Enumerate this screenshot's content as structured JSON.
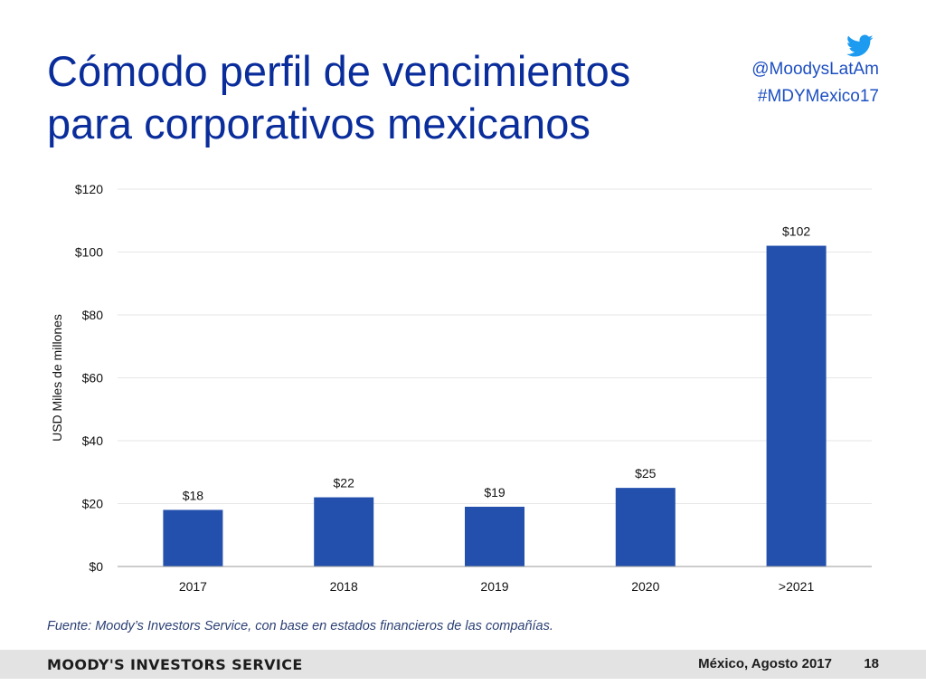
{
  "header": {
    "title_line1": "Cómodo perfil de vencimientos",
    "title_line2": "para corporativos mexicanos",
    "twitter_handle": "@MoodysLatAm",
    "hashtag": "#MDYMexico17",
    "icon": "twitter-bird-icon"
  },
  "chart_data": {
    "type": "bar",
    "title": "",
    "xlabel": "",
    "ylabel": "USD Miles de millones",
    "categories": [
      "2017",
      "2018",
      "2019",
      "2020",
      ">2021"
    ],
    "values": [
      18,
      22,
      19,
      25,
      102
    ],
    "value_labels": [
      "$18",
      "$22",
      "$19",
      "$25",
      "$102"
    ],
    "ylim": [
      0,
      120
    ],
    "yticks": [
      0,
      20,
      40,
      60,
      80,
      100,
      120
    ],
    "ytick_labels": [
      "$0",
      "$20",
      "$40",
      "$60",
      "$80",
      "$100",
      "$120"
    ],
    "bar_color": "#2350ad",
    "grid": true,
    "legend": "none"
  },
  "source_note": "Fuente: Moody’s Investors Service, con base en estados financieros de las compañías.",
  "footer": {
    "brand": "MOODY'S INVESTORS SERVICE",
    "date": "México, Agosto 2017",
    "page": "18"
  }
}
